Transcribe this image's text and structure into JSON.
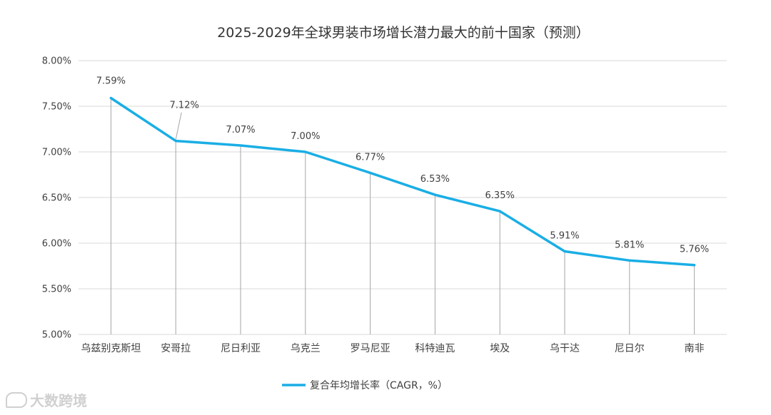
{
  "chart_data": {
    "type": "line",
    "title": "2025-2029年全球男装市场增长潜力最大的前十国家（预测）",
    "categories": [
      "乌兹别克斯坦",
      "安哥拉",
      "尼日利亚",
      "乌克兰",
      "罗马尼亚",
      "科特迪瓦",
      "埃及",
      "乌干达",
      "尼日尔",
      "南非"
    ],
    "series": [
      {
        "name": "复合年均增长率（CAGR，%）",
        "values": [
          7.59,
          7.12,
          7.07,
          7.0,
          6.77,
          6.53,
          6.35,
          5.91,
          5.81,
          5.76
        ],
        "data_labels": [
          "7.59%",
          "7.12%",
          "7.07%",
          "7.00%",
          "6.77%",
          "6.53%",
          "6.35%",
          "5.91%",
          "5.81%",
          "5.76%"
        ],
        "color": "#1aaee5"
      }
    ],
    "ylim": [
      5.0,
      8.0
    ],
    "yticks": [
      5.0,
      5.5,
      6.0,
      6.5,
      7.0,
      7.5,
      8.0
    ],
    "ytick_labels": [
      "5.00%",
      "5.50%",
      "6.00%",
      "6.50%",
      "7.00%",
      "7.50%",
      "8.00%"
    ],
    "xlabel": "",
    "ylabel": "",
    "grid": true,
    "drop_lines": true,
    "legend_position": "bottom-center"
  },
  "watermark": {
    "text": "大数跨境"
  },
  "colors": {
    "gridline": "#d9d9d9",
    "dropline": "#a6a6a6",
    "text": "#404040",
    "title": "#333333"
  }
}
